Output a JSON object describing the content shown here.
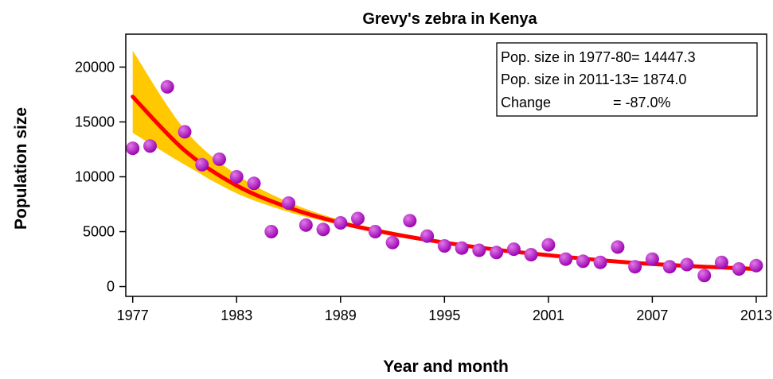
{
  "chart_data": {
    "type": "scatter",
    "title": "Grevy's zebra in Kenya",
    "xlabel": "Year and month",
    "ylabel": "Population size",
    "xlim": [
      1976.6,
      2013.6
    ],
    "ylim": [
      -900,
      23000
    ],
    "x_ticks": [
      1977,
      1983,
      1989,
      1995,
      2001,
      2007,
      2013
    ],
    "y_ticks": [
      0,
      5000,
      10000,
      15000,
      20000
    ],
    "grid": false,
    "legend": "none",
    "series": [
      {
        "kind": "points",
        "x": [
          1977,
          1978,
          1979,
          1980,
          1981,
          1982,
          1983,
          1984,
          1985,
          1986,
          1987,
          1988,
          1989,
          1990,
          1991,
          1992,
          1993,
          1994,
          1995,
          1996,
          1997,
          1998,
          1999,
          2000,
          2001,
          2002,
          2003,
          2004,
          2005,
          2006,
          2007,
          2008,
          2009,
          2010,
          2011,
          2012,
          2013
        ],
        "y": [
          12600,
          12800,
          18200,
          14100,
          11100,
          11600,
          10000,
          9400,
          5000,
          7600,
          5600,
          5200,
          5800,
          6200,
          5000,
          4000,
          6000,
          4600,
          3700,
          3500,
          3300,
          3100,
          3400,
          2900,
          3800,
          2500,
          2300,
          2200,
          3600,
          1800,
          2500,
          1800,
          2000,
          1000,
          2200,
          1600,
          1900
        ]
      },
      {
        "kind": "fit-line",
        "x": [
          1977,
          1980,
          1983,
          1986,
          1989,
          1992,
          1995,
          1998,
          2001,
          2004,
          2007,
          2010,
          2013
        ],
        "y": [
          17300,
          12400,
          9200,
          7200,
          5800,
          4800,
          4000,
          3350,
          2850,
          2400,
          2050,
          1800,
          1600
        ]
      },
      {
        "kind": "confidence-band",
        "x": [
          1977,
          1980,
          1983,
          1986,
          1989,
          1992,
          1995,
          1998,
          2001,
          2004,
          2007,
          2010,
          2013
        ],
        "lower": [
          14000,
          11100,
          8500,
          6800,
          5600,
          4600,
          3850,
          3200,
          2700,
          2250,
          1900,
          1650,
          1400
        ],
        "upper": [
          21500,
          14300,
          10200,
          7700,
          6050,
          5000,
          4150,
          3500,
          3000,
          2550,
          2200,
          1950,
          1800
        ]
      }
    ],
    "annotations": [
      "Pop. size in 1977-80= 14447.3",
      "Pop. size in 2011-13= 1874.0"
    ],
    "annotation_change": {
      "label": "Change",
      "value": "= -87.0%"
    },
    "colors": {
      "points": "#9b00b0",
      "point_highlight": "#e07ae8",
      "fit_line": "#ff0000",
      "band": "#ffc800"
    }
  }
}
